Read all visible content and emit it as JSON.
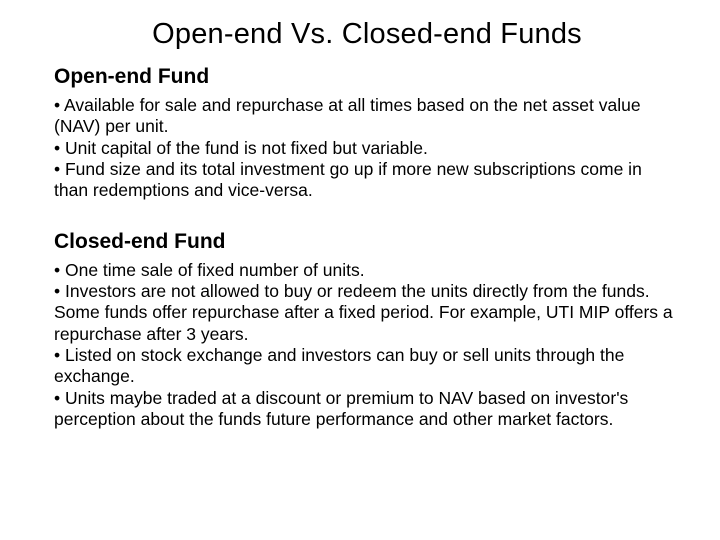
{
  "title": "Open-end Vs. Closed-end Funds",
  "sections": {
    "open": {
      "heading": "Open-end Fund",
      "bullets": [
        "• Available for sale and repurchase at all times based on the net asset value (NAV) per unit.",
        "• Unit capital of the fund is not fixed but variable.",
        "• Fund size and its total investment go up if more new subscriptions come in than redemptions and vice-versa."
      ]
    },
    "closed": {
      "heading": "Closed-end Fund",
      "bullets": [
        "• One time sale of fixed number of units.",
        "• Investors are not allowed to buy or redeem the units directly from the funds. Some funds offer repurchase after a fixed period. For example, UTI MIP offers a repurchase after 3 years.",
        "• Listed on stock exchange and investors can buy or sell units through the exchange.",
        "• Units maybe traded at a discount or premium to NAV based on investor's perception about the funds future performance and other market factors."
      ]
    }
  },
  "styling": {
    "background_color": "#ffffff",
    "text_color": "#000000",
    "title_fontsize": 29,
    "heading_fontsize": 21,
    "body_fontsize": 17.5,
    "font_family": "Arial"
  }
}
